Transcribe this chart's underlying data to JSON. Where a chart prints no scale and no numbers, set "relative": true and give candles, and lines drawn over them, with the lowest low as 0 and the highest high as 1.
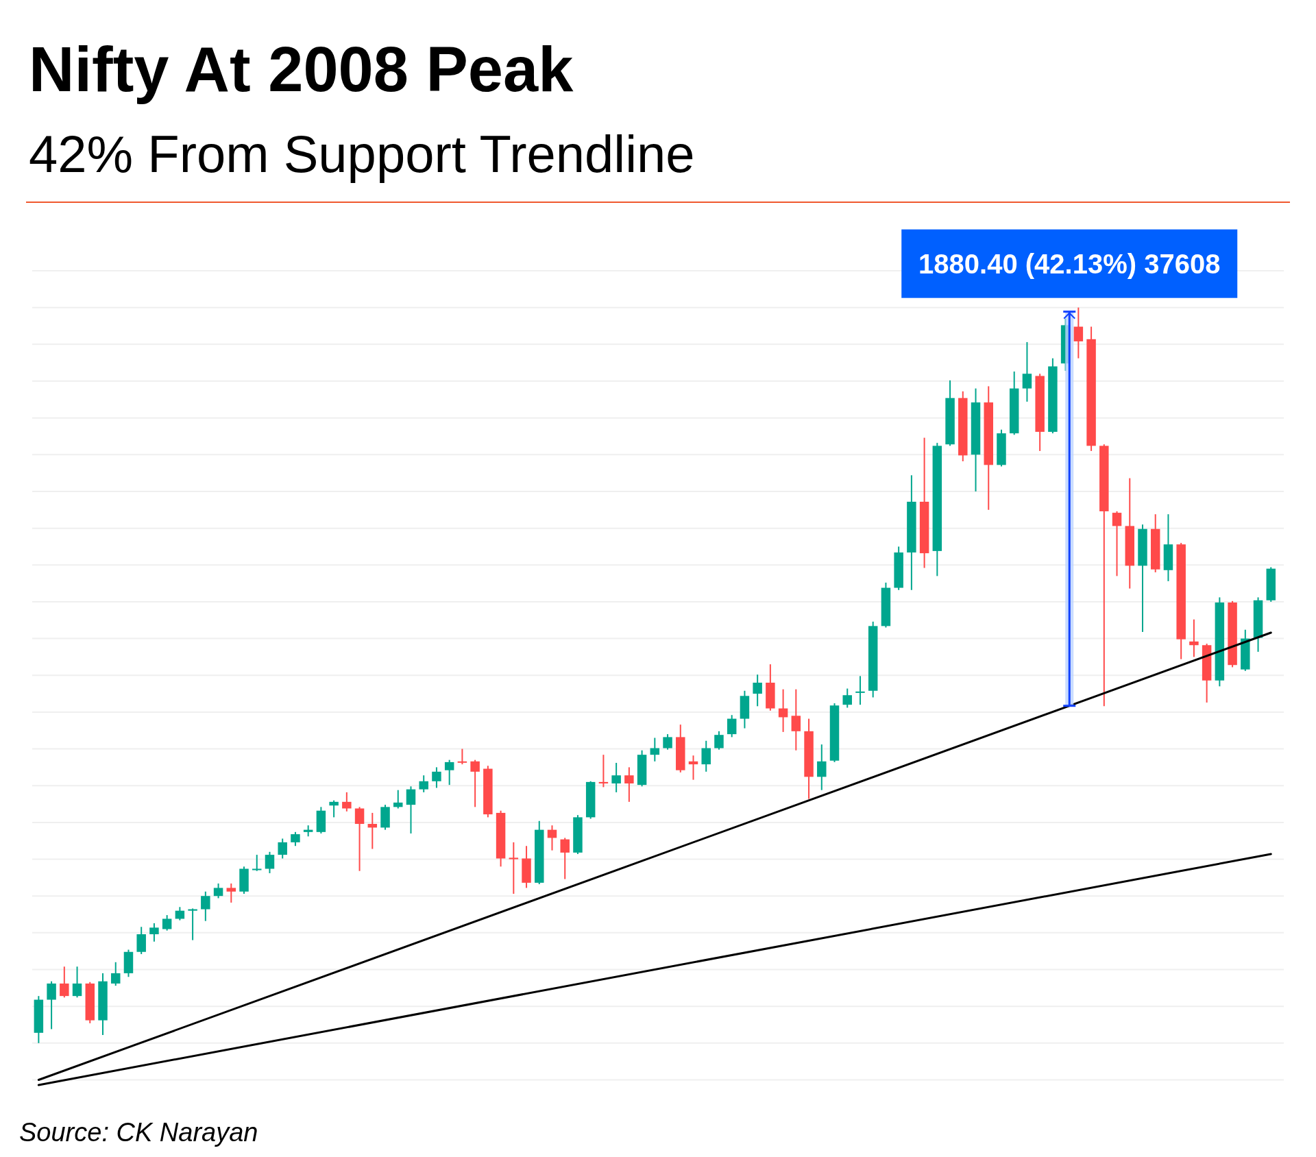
{
  "chart_data": {
    "type": "candlestick",
    "title": "Nifty At 2008 Peak",
    "subtitle": "42% From Support Trendline",
    "relative": true,
    "grid": "y",
    "annotations": [
      "1880.40 (42.13%) 37608",
      "Source: CK Narayan"
    ],
    "categories": [
      null,
      null,
      null,
      null,
      null,
      null,
      null,
      null,
      null,
      null,
      null,
      null,
      null,
      null,
      null,
      null,
      null,
      null,
      null,
      null,
      null,
      null,
      null,
      null,
      null,
      null,
      null,
      null,
      null,
      null,
      null,
      null,
      null,
      null,
      null,
      null,
      null,
      null,
      null,
      null,
      null,
      null,
      null,
      null,
      null,
      null,
      null,
      null,
      null,
      null,
      null,
      null,
      null,
      null,
      null,
      null,
      null,
      null,
      null,
      null,
      null,
      null,
      null,
      null,
      null,
      null,
      null,
      null,
      null,
      null,
      null,
      null,
      null,
      null,
      null,
      null,
      null,
      null,
      null,
      null,
      null,
      null,
      null,
      null,
      null,
      null,
      null,
      null,
      null,
      null,
      null,
      null,
      null,
      null,
      null,
      null,
      null
    ],
    "ohlc": [
      [
        0.014,
        0.064,
        0,
        0.059
      ],
      [
        0.059,
        0.084,
        0.019,
        0.081
      ],
      [
        0.081,
        0.104,
        0.062,
        0.064
      ],
      [
        0.064,
        0.104,
        0.062,
        0.081
      ],
      [
        0.081,
        0.083,
        0.027,
        0.031
      ],
      [
        0.031,
        0.095,
        0.011,
        0.084
      ],
      [
        0.081,
        0.11,
        0.078,
        0.095
      ],
      [
        0.095,
        0.127,
        0.09,
        0.124
      ],
      [
        0.124,
        0.158,
        0.121,
        0.148
      ],
      [
        0.148,
        0.163,
        0.138,
        0.157
      ],
      [
        0.155,
        0.174,
        0.153,
        0.169
      ],
      [
        0.169,
        0.185,
        0.167,
        0.18
      ],
      [
        0.18,
        0.183,
        0.14,
        0.182
      ],
      [
        0.182,
        0.206,
        0.166,
        0.2
      ],
      [
        0.2,
        0.217,
        0.197,
        0.211
      ],
      [
        0.211,
        0.217,
        0.191,
        0.206
      ],
      [
        0.206,
        0.24,
        0.203,
        0.237
      ],
      [
        0.236,
        0.256,
        0.234,
        0.237
      ],
      [
        0.237,
        0.26,
        0.231,
        0.256
      ],
      [
        0.256,
        0.278,
        0.251,
        0.273
      ],
      [
        0.273,
        0.287,
        0.268,
        0.284
      ],
      [
        0.287,
        0.296,
        0.281,
        0.29
      ],
      [
        0.287,
        0.321,
        0.285,
        0.316
      ],
      [
        0.323,
        0.33,
        0.307,
        0.328
      ],
      [
        0.328,
        0.341,
        0.315,
        0.319
      ],
      [
        0.319,
        0.321,
        0.234,
        0.298
      ],
      [
        0.298,
        0.313,
        0.264,
        0.293
      ],
      [
        0.293,
        0.324,
        0.29,
        0.321
      ],
      [
        0.321,
        0.344,
        0.319,
        0.327
      ],
      [
        0.324,
        0.349,
        0.285,
        0.345
      ],
      [
        0.345,
        0.364,
        0.341,
        0.356
      ],
      [
        0.356,
        0.375,
        0.347,
        0.369
      ],
      [
        0.371,
        0.385,
        0.351,
        0.382
      ],
      [
        0.383,
        0.4,
        0.379,
        0.382
      ],
      [
        0.383,
        0.385,
        0.321,
        0.369
      ],
      [
        0.373,
        0.377,
        0.307,
        0.311
      ],
      [
        0.313,
        0.316,
        0.24,
        0.251
      ],
      [
        0.252,
        0.273,
        0.203,
        0.25
      ],
      [
        0.251,
        0.268,
        0.211,
        0.218
      ],
      [
        0.218,
        0.302,
        0.216,
        0.29
      ],
      [
        0.29,
        0.296,
        0.262,
        0.279
      ],
      [
        0.277,
        0.279,
        0.223,
        0.259
      ],
      [
        0.259,
        0.31,
        0.257,
        0.307
      ],
      [
        0.307,
        0.356,
        0.305,
        0.355
      ],
      [
        0.355,
        0.392,
        0.348,
        0.353
      ],
      [
        0.353,
        0.381,
        0.341,
        0.364
      ],
      [
        0.364,
        0.375,
        0.328,
        0.353
      ],
      [
        0.351,
        0.398,
        0.349,
        0.392
      ],
      [
        0.392,
        0.415,
        0.383,
        0.401
      ],
      [
        0.401,
        0.42,
        0.399,
        0.416
      ],
      [
        0.416,
        0.433,
        0.368,
        0.371
      ],
      [
        0.383,
        0.391,
        0.358,
        0.379
      ],
      [
        0.379,
        0.411,
        0.369,
        0.401
      ],
      [
        0.401,
        0.424,
        0.399,
        0.419
      ],
      [
        0.42,
        0.446,
        0.416,
        0.441
      ],
      [
        0.441,
        0.479,
        0.428,
        0.472
      ],
      [
        0.475,
        0.501,
        0.458,
        0.49
      ],
      [
        0.49,
        0.515,
        0.452,
        0.455
      ],
      [
        0.455,
        0.481,
        0.423,
        0.443
      ],
      [
        0.445,
        0.481,
        0.398,
        0.424
      ],
      [
        0.424,
        0.441,
        0.332,
        0.362
      ],
      [
        0.362,
        0.406,
        0.344,
        0.383
      ],
      [
        0.384,
        0.462,
        0.382,
        0.459
      ],
      [
        0.46,
        0.482,
        0.456,
        0.473
      ],
      [
        0.477,
        0.499,
        0.46,
        0.478
      ],
      [
        0.479,
        0.573,
        0.47,
        0.567
      ],
      [
        0.567,
        0.626,
        0.565,
        0.619
      ],
      [
        0.619,
        0.675,
        0.616,
        0.667
      ],
      [
        0.667,
        0.772,
        0.616,
        0.736
      ],
      [
        0.736,
        0.823,
        0.646,
        0.666
      ],
      [
        0.669,
        0.816,
        0.635,
        0.812
      ],
      [
        0.814,
        0.901,
        0.812,
        0.877
      ],
      [
        0.877,
        0.886,
        0.791,
        0.799
      ],
      [
        0.8,
        0.89,
        0.75,
        0.871
      ],
      [
        0.871,
        0.893,
        0.725,
        0.786
      ],
      [
        0.786,
        0.834,
        0.784,
        0.829
      ],
      [
        0.829,
        0.913,
        0.827,
        0.89
      ],
      [
        0.89,
        0.953,
        0.872,
        0.91
      ],
      [
        0.907,
        0.91,
        0.805,
        0.831
      ],
      [
        0.831,
        0.931,
        0.829,
        0.92
      ],
      [
        0.924,
        0.985,
        0.914,
        0.976
      ],
      [
        0.974,
        1,
        0.931,
        0.954
      ],
      [
        0.957,
        0.974,
        0.805,
        0.812
      ],
      [
        0.812,
        0.814,
        0.458,
        0.723
      ],
      [
        0.721,
        0.723,
        0.635,
        0.703
      ],
      [
        0.703,
        0.768,
        0.618,
        0.649
      ],
      [
        0.649,
        0.705,
        0.559,
        0.699
      ],
      [
        0.699,
        0.719,
        0.64,
        0.644
      ],
      [
        0.643,
        0.719,
        0.628,
        0.678
      ],
      [
        0.678,
        0.68,
        0.522,
        0.549
      ],
      [
        0.546,
        0.576,
        0.525,
        0.541
      ],
      [
        0.541,
        0.543,
        0.463,
        0.493
      ],
      [
        0.493,
        0.606,
        0.485,
        0.599
      ],
      [
        0.599,
        0.601,
        0.511,
        0.514
      ],
      [
        0.508,
        0.562,
        0.506,
        0.55
      ],
      [
        0.551,
        0.606,
        0.532,
        0.602
      ],
      [
        0.602,
        0.647,
        0.6,
        0.645
      ]
    ],
    "series": [
      {
        "type": "line",
        "color": "#000000",
        "values": [
          -0.05,
          null,
          null,
          null,
          null,
          null,
          null,
          null,
          null,
          null,
          null,
          null,
          null,
          null,
          null,
          null,
          null,
          null,
          null,
          null,
          null,
          null,
          null,
          null,
          null,
          null,
          null,
          null,
          null,
          null,
          null,
          null,
          null,
          null,
          null,
          null,
          null,
          null,
          null,
          null,
          null,
          null,
          null,
          null,
          null,
          null,
          null,
          null,
          null,
          null,
          null,
          null,
          null,
          null,
          null,
          null,
          null,
          null,
          null,
          null,
          null,
          null,
          null,
          null,
          null,
          null,
          null,
          null,
          null,
          null,
          null,
          null,
          null,
          null,
          null,
          null,
          null,
          null,
          null,
          null,
          null,
          null,
          null,
          null,
          null,
          null,
          null,
          null,
          null,
          null,
          null,
          null,
          null,
          null,
          null,
          null,
          0.558
        ]
      },
      {
        "type": "line",
        "color": "#000000",
        "values": [
          -0.057,
          null,
          null,
          null,
          null,
          null,
          null,
          null,
          null,
          null,
          null,
          null,
          null,
          null,
          null,
          null,
          null,
          null,
          null,
          null,
          null,
          null,
          null,
          null,
          null,
          null,
          null,
          null,
          null,
          null,
          null,
          null,
          null,
          null,
          null,
          null,
          null,
          null,
          null,
          null,
          null,
          null,
          null,
          null,
          null,
          null,
          null,
          null,
          null,
          null,
          null,
          null,
          null,
          null,
          null,
          null,
          null,
          null,
          null,
          null,
          null,
          null,
          null,
          null,
          null,
          null,
          null,
          null,
          null,
          null,
          null,
          null,
          null,
          null,
          null,
          null,
          null,
          null,
          null,
          null,
          null,
          null,
          null,
          null,
          null,
          null,
          null,
          null,
          null,
          null,
          null,
          null,
          null,
          null,
          null,
          null,
          0.257
        ]
      }
    ]
  }
}
